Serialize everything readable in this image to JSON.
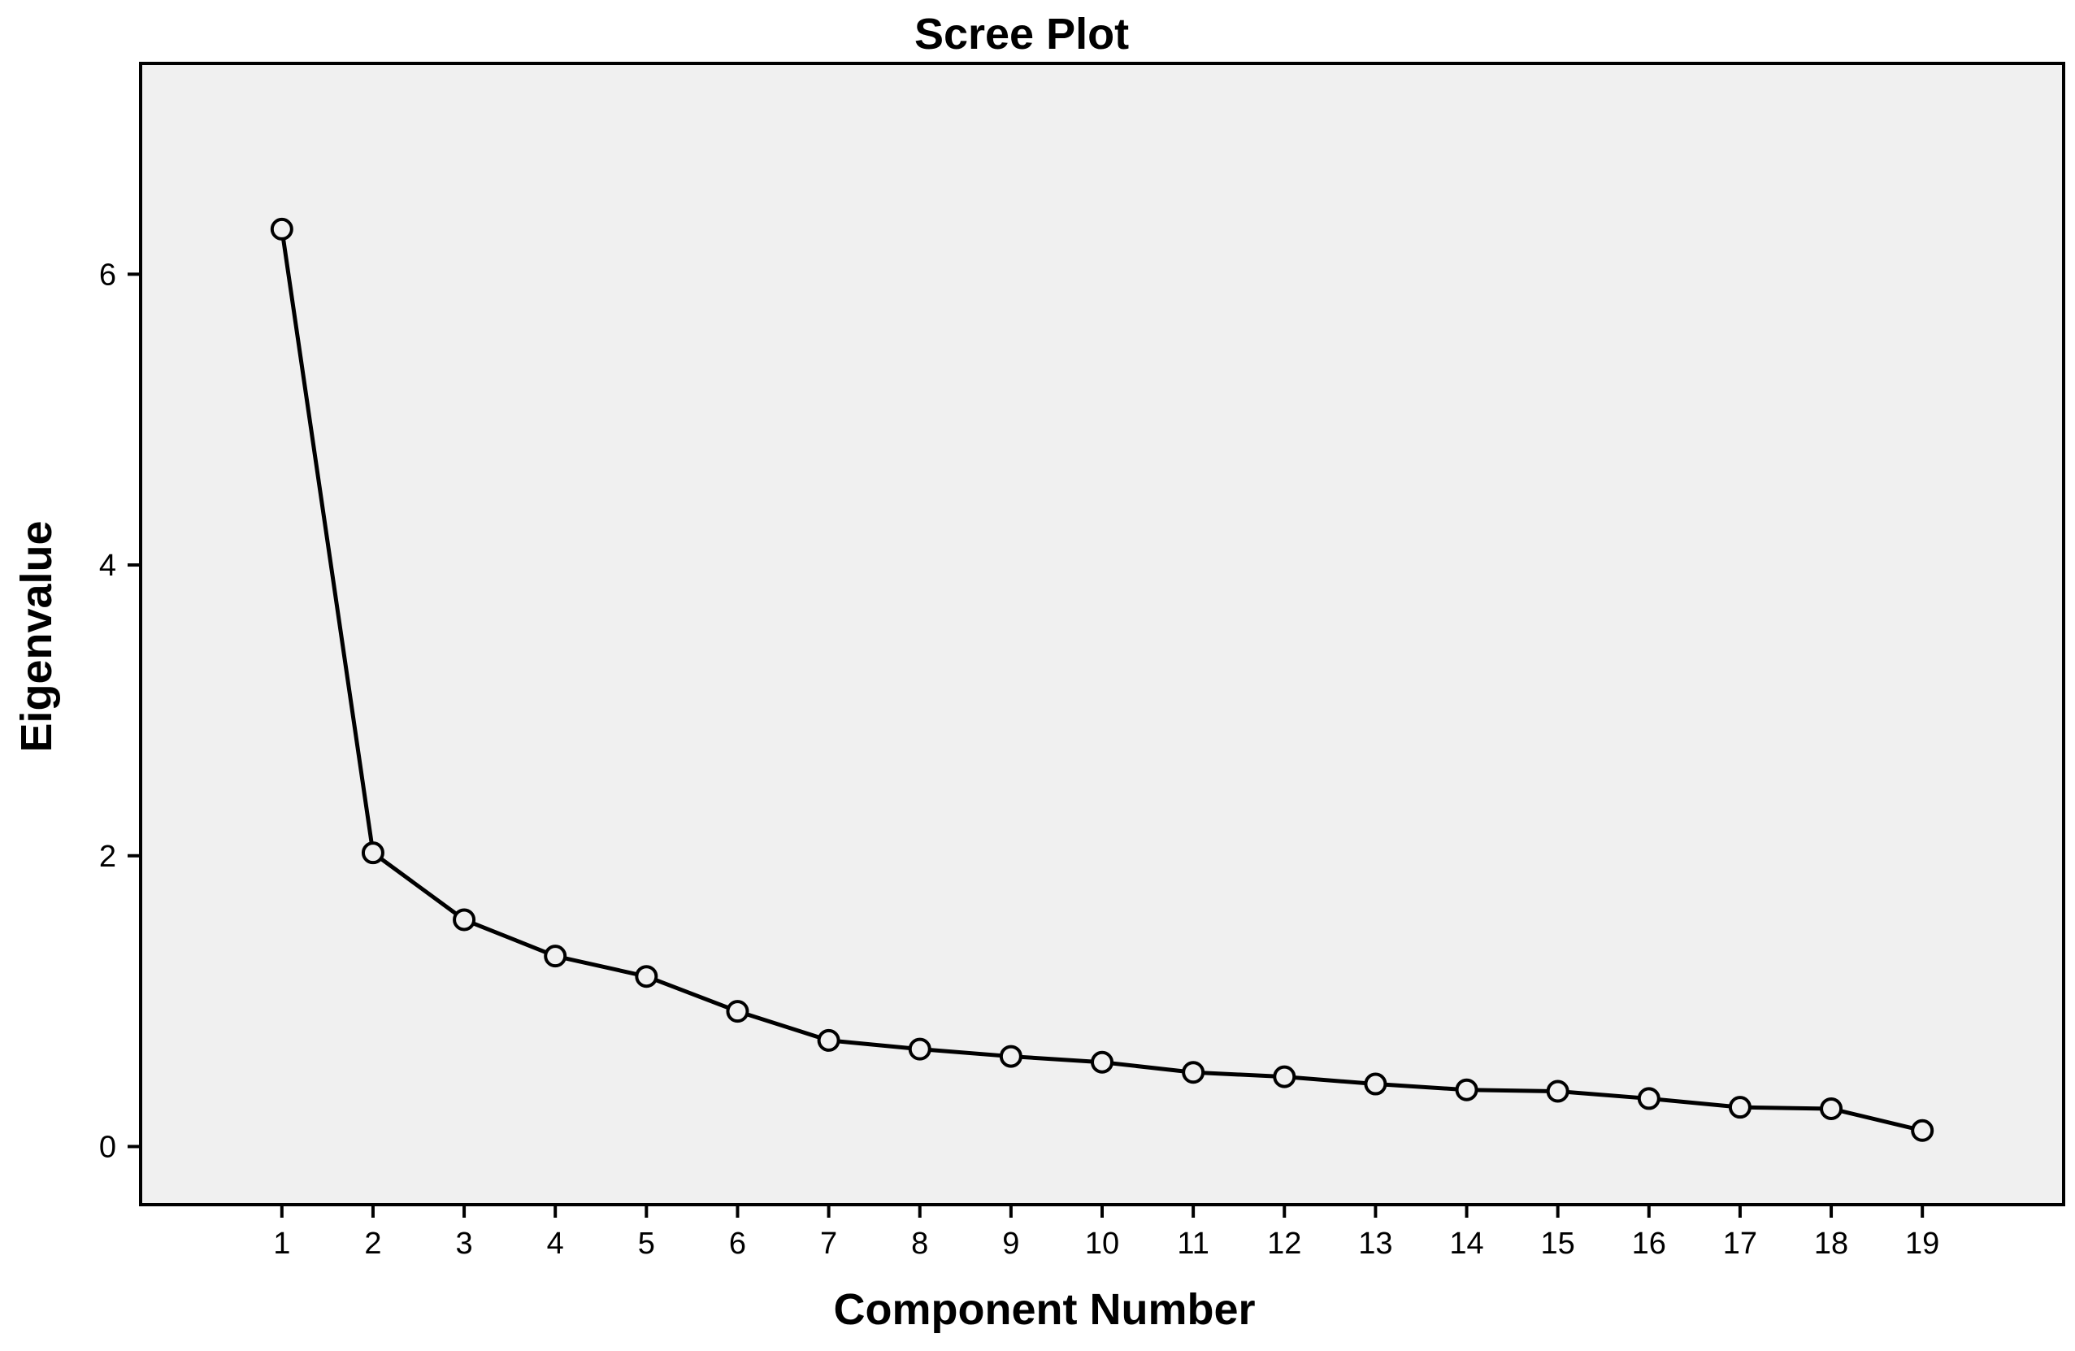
{
  "chart_data": {
    "type": "line",
    "title": "Scree Plot",
    "xlabel": "Component Number",
    "ylabel": "Eigenvalue",
    "x": [
      1,
      2,
      3,
      4,
      5,
      6,
      7,
      8,
      9,
      10,
      11,
      12,
      13,
      14,
      15,
      16,
      17,
      18,
      19
    ],
    "x_tick_labels": [
      "1",
      "2",
      "3",
      "4",
      "5",
      "6",
      "7",
      "8",
      "9",
      "10",
      "11",
      "12",
      "13",
      "14",
      "15",
      "16",
      "17",
      "18",
      "19"
    ],
    "series": [
      {
        "values": [
          6.31,
          2.02,
          1.56,
          1.31,
          1.17,
          0.93,
          0.73,
          0.67,
          0.62,
          0.58,
          0.51,
          0.48,
          0.43,
          0.39,
          0.38,
          0.33,
          0.27,
          0.26,
          0.11
        ]
      }
    ],
    "xlim": [
      -0.55,
      20.55
    ],
    "ylim": [
      -0.4,
      7.45
    ],
    "y_ticks": [
      0,
      2,
      4,
      6
    ],
    "y_tick_labels": [
      "0",
      "2",
      "4",
      "6"
    ],
    "grid": false,
    "legend": "none",
    "marker": "open-circle",
    "colors": {
      "plot_background": "#f0f0f0",
      "line": "#000000",
      "marker_fill": "#f0f0f0"
    }
  }
}
